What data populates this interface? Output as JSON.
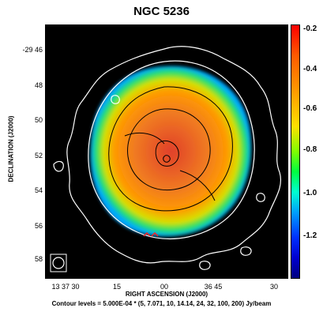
{
  "title": "NGC 5236",
  "xlabel": "RIGHT ASCENSION (J2000)",
  "ylabel": "DECLINATION (J2000)",
  "caption": "Contour levels = 5.000E-04 * (5, 7.071, 10, 14.14, 24, 32, 100, 200) Jy/beam",
  "y_ticks": [
    "-29 46",
    "48",
    "50",
    "52",
    "54",
    "56",
    "58"
  ],
  "x_ticks": [
    "13 37 30",
    "15",
    "00",
    "36 45",
    "30"
  ],
  "colorbar": {
    "labels": [
      "-0.2",
      "-0.4",
      "-0.6",
      "-0.8",
      "-1.0",
      "-1.2"
    ],
    "colors": [
      "#ff0000",
      "#ff9a00",
      "#ffe000",
      "#00ff40",
      "#00a0ff",
      "#0000d0"
    ]
  },
  "colors": {
    "background": "#000000",
    "contour_outer": "#ffffff",
    "contour_inner": "#000000",
    "core": "#e0402a",
    "disk_mid": "#ff9a00",
    "disk_edge": "#00e070"
  },
  "icons": {
    "beam": "beam-ellipse-icon"
  }
}
